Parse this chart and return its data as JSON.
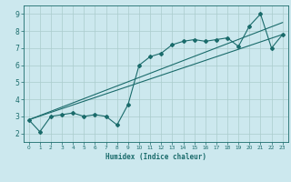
{
  "xlabel": "Humidex (Indice chaleur)",
  "ylabel": "",
  "xlim": [
    -0.5,
    23.5
  ],
  "ylim": [
    1.5,
    9.5
  ],
  "xticks": [
    0,
    1,
    2,
    3,
    4,
    5,
    6,
    7,
    8,
    9,
    10,
    11,
    12,
    13,
    14,
    15,
    16,
    17,
    18,
    19,
    20,
    21,
    22,
    23
  ],
  "yticks": [
    2,
    3,
    4,
    5,
    6,
    7,
    8,
    9
  ],
  "background_color": "#cce8ee",
  "grid_color": "#aacccc",
  "line_color": "#1a6b6b",
  "line1_x": [
    0,
    1,
    2,
    3,
    4,
    5,
    6,
    7,
    8,
    9,
    10,
    11,
    12,
    13,
    14,
    15,
    16,
    17,
    18,
    19,
    20,
    21,
    22,
    23
  ],
  "line1_y": [
    2.8,
    2.1,
    3.0,
    3.1,
    3.2,
    3.0,
    3.1,
    3.0,
    2.5,
    3.7,
    6.0,
    6.5,
    6.7,
    7.2,
    7.4,
    7.5,
    7.4,
    7.5,
    7.6,
    7.1,
    8.3,
    9.0,
    7.0,
    7.8
  ],
  "line2_x": [
    0,
    23
  ],
  "line2_y": [
    2.8,
    7.8
  ],
  "line3_x": [
    0,
    23
  ],
  "line3_y": [
    2.8,
    8.5
  ]
}
